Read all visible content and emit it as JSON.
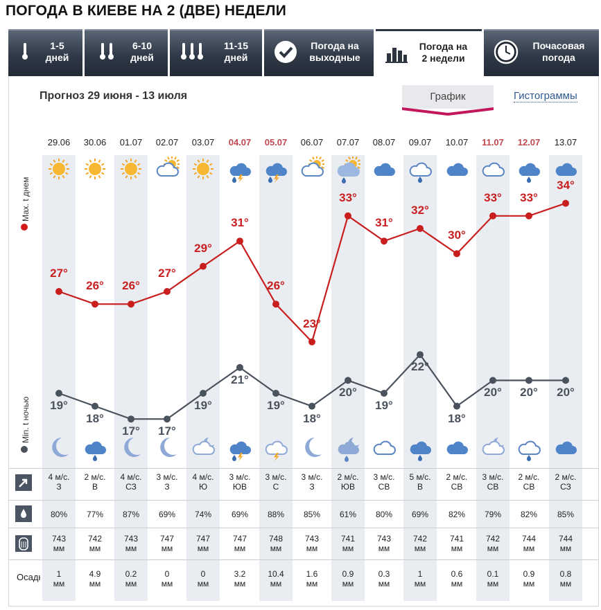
{
  "page": {
    "title": "ПОГОДА В КИЕВЕ НА 2 (ДВЕ) НЕДЕЛИ"
  },
  "tabs": [
    {
      "label": "1-5\nдней",
      "icon": "thermometer-icon",
      "active": false
    },
    {
      "label": "6-10\nдней",
      "icon": "thermometers-2-icon",
      "active": false
    },
    {
      "label": "11-15\nдней",
      "icon": "thermometers-3-icon",
      "active": false
    },
    {
      "label": "Погода на\nвыходные",
      "icon": "checkmark-circle-icon",
      "active": false
    },
    {
      "label": "Погода на\n2 недели",
      "icon": "bar-chart-icon",
      "active": true
    },
    {
      "label": "Почасовая\nпогода",
      "icon": "clock-icon",
      "active": false
    }
  ],
  "forecast": {
    "subtitle": "Прогноз 29 июня - 13 июля",
    "view_graph": "График",
    "view_hist": "Гистограммы",
    "label_max": "Max. t днем",
    "label_min": "Min. t ночью",
    "label_precip": "Осадки"
  },
  "colors": {
    "max": "#c81e1e",
    "min": "#4a525d",
    "holiday": "#c0484f"
  },
  "days": [
    {
      "date": "29.06",
      "holiday": false,
      "day_icon": "sun-icon",
      "night_icon": "moon-icon",
      "tmax": "27°",
      "tmin": "19°",
      "wind": "4 м/с.\nЗ",
      "humidity": "80%",
      "pressure": "743\nмм",
      "precip": "1\nмм"
    },
    {
      "date": "30.06",
      "holiday": false,
      "day_icon": "sun-icon",
      "night_icon": "cloud-rain-icon",
      "tmax": "26°",
      "tmin": "18°",
      "wind": "2 м/с.\nВ",
      "humidity": "77%",
      "pressure": "742\nмм",
      "precip": "4.9\nмм"
    },
    {
      "date": "01.07",
      "holiday": false,
      "day_icon": "sun-icon",
      "night_icon": "moon-icon",
      "tmax": "26°",
      "tmin": "17°",
      "wind": "4 м/с.\nСЗ",
      "humidity": "87%",
      "pressure": "743\nмм",
      "precip": "0.2\nмм"
    },
    {
      "date": "02.07",
      "holiday": false,
      "day_icon": "cloud-sun-icon",
      "night_icon": "moon-icon",
      "tmax": "27°",
      "tmin": "17°",
      "wind": "3 м/с.\nЗ",
      "humidity": "69%",
      "pressure": "747\nмм",
      "precip": "0\nмм"
    },
    {
      "date": "03.07",
      "holiday": false,
      "day_icon": "sun-icon",
      "night_icon": "cloud-moon-icon",
      "tmax": "29°",
      "tmin": "19°",
      "wind": "4 м/с.\nЮ",
      "humidity": "74%",
      "pressure": "747\nмм",
      "precip": "0\nмм"
    },
    {
      "date": "04.07",
      "holiday": true,
      "day_icon": "cloud-thunder-icon",
      "night_icon": "cloud-thunder-icon",
      "tmax": "31°",
      "tmin": "21°",
      "wind": "3 м/с.\nЮВ",
      "humidity": "69%",
      "pressure": "747\nмм",
      "precip": "3.2\nмм"
    },
    {
      "date": "05.07",
      "holiday": true,
      "day_icon": "cloud-thunder-icon",
      "night_icon": "cloud-thunder-outline-icon",
      "tmax": "26°",
      "tmin": "19°",
      "wind": "3 м/с.\nС",
      "humidity": "88%",
      "pressure": "748\nмм",
      "precip": "10.4\nмм"
    },
    {
      "date": "06.07",
      "holiday": false,
      "day_icon": "cloud-sun-icon",
      "night_icon": "moon-icon",
      "tmax": "23°",
      "tmin": "18°",
      "wind": "3 м/с.\nЗ",
      "humidity": "85%",
      "pressure": "743\nмм",
      "precip": "1.6\nмм"
    },
    {
      "date": "07.07",
      "holiday": false,
      "day_icon": "cloud-sun-rain-icon",
      "night_icon": "cloud-moon-rain-icon",
      "tmax": "33°",
      "tmin": "20°",
      "wind": "2 м/с.\nЮВ",
      "humidity": "61%",
      "pressure": "741\nмм",
      "precip": "0.9\nмм"
    },
    {
      "date": "08.07",
      "holiday": false,
      "day_icon": "cloud-icon",
      "night_icon": "cloud-outline-icon",
      "tmax": "31°",
      "tmin": "19°",
      "wind": "3 м/с.\nСВ",
      "humidity": "80%",
      "pressure": "743\nмм",
      "precip": "0.3\nмм"
    },
    {
      "date": "09.07",
      "holiday": false,
      "day_icon": "cloud-rain-outline-icon",
      "night_icon": "cloud-rain-icon",
      "tmax": "32°",
      "tmin": "22°",
      "wind": "5 м/с.\nВ",
      "humidity": "69%",
      "pressure": "742\nмм",
      "precip": "1\nмм"
    },
    {
      "date": "10.07",
      "holiday": false,
      "day_icon": "cloud-icon",
      "night_icon": "cloud-icon",
      "tmax": "30°",
      "tmin": "18°",
      "wind": "2 м/с.\nСВ",
      "humidity": "82%",
      "pressure": "741\nмм",
      "precip": "0.6\nмм"
    },
    {
      "date": "11.07",
      "holiday": true,
      "day_icon": "cloud-outline-icon",
      "night_icon": "cloud-moon-icon",
      "tmax": "33°",
      "tmin": "20°",
      "wind": "3 м/с.\nСВ",
      "humidity": "79%",
      "pressure": "742\nмм",
      "precip": "0.1\nмм"
    },
    {
      "date": "12.07",
      "holiday": true,
      "day_icon": "cloud-rain-icon",
      "night_icon": "cloud-rain-outline-icon",
      "tmax": "33°",
      "tmin": "20°",
      "wind": "2 м/с.\nСВ",
      "humidity": "82%",
      "pressure": "744\nмм",
      "precip": "0.9\nмм"
    },
    {
      "date": "13.07",
      "holiday": false,
      "day_icon": "cloud-icon",
      "night_icon": "cloud-icon",
      "tmax": "34°",
      "tmin": "20°",
      "wind": "2 м/с.\nСЗ",
      "humidity": "85%",
      "pressure": "744\nмм",
      "precip": "0.8\nмм"
    }
  ],
  "chart_data": {
    "type": "line",
    "title": "Прогноз 29 июня - 13 июля",
    "categories": [
      "29.06",
      "30.06",
      "01.07",
      "02.07",
      "03.07",
      "04.07",
      "05.07",
      "06.07",
      "07.07",
      "08.07",
      "09.07",
      "10.07",
      "11.07",
      "12.07",
      "13.07"
    ],
    "series": [
      {
        "name": "Max. t днем",
        "values": [
          27,
          26,
          26,
          27,
          29,
          31,
          26,
          23,
          33,
          31,
          32,
          30,
          33,
          33,
          34
        ]
      },
      {
        "name": "Min. t ночью",
        "values": [
          19,
          18,
          17,
          17,
          19,
          21,
          19,
          18,
          20,
          19,
          22,
          18,
          20,
          20,
          20
        ]
      }
    ],
    "ylabel": "°C"
  }
}
